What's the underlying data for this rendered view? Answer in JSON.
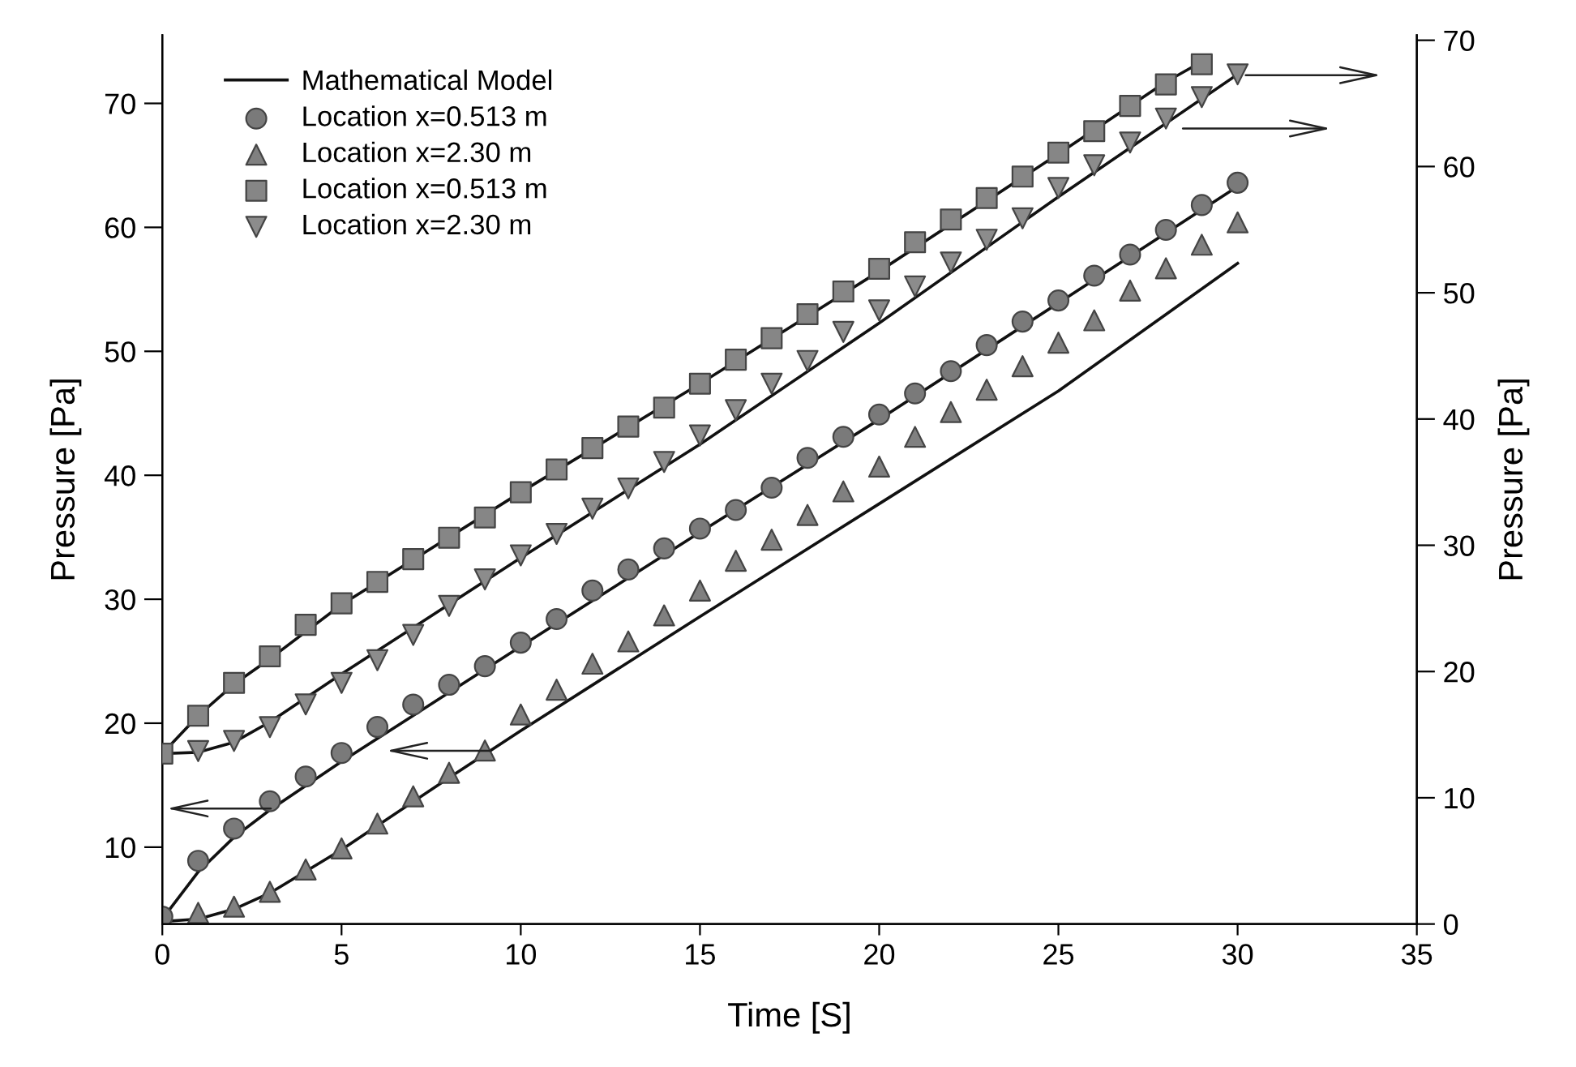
{
  "chart_data": {
    "type": "scatter",
    "xlabel": "Time [S]",
    "ylabel": "Pressure [Pa]",
    "y2label": "Pressure [Pa]",
    "xlim": [
      0,
      35
    ],
    "xticks": [
      0,
      5,
      10,
      15,
      20,
      25,
      30,
      35
    ],
    "ylim": [
      3.8,
      75.5
    ],
    "yticks": [
      10,
      20,
      30,
      40,
      50,
      60,
      70
    ],
    "y2lim": [
      0,
      70.4
    ],
    "y2ticks": [
      0,
      10,
      20,
      30,
      40,
      50,
      60,
      70
    ],
    "grid": false,
    "legend": "top left",
    "x": [
      0,
      1,
      2,
      3,
      4,
      5,
      6,
      7,
      8,
      9,
      10,
      11,
      12,
      13,
      14,
      15,
      16,
      17,
      18,
      19,
      20,
      21,
      22,
      23,
      24,
      25,
      26,
      27,
      28,
      29,
      30
    ],
    "series": [
      {
        "type": "line",
        "name": "Mathematical Model",
        "color": "#111111",
        "marker": "none",
        "line_style": "solid",
        "x": [
          0,
          1,
          2,
          3,
          5,
          10,
          15,
          20,
          25,
          30
        ],
        "values": [
          4.2,
          8.0,
          10.8,
          13.0,
          16.9,
          26.2,
          35.4,
          44.5,
          53.9,
          63.3
        ]
      },
      {
        "type": "line",
        "color": "#111111",
        "marker": "none",
        "line_style": "solid",
        "x": [
          0,
          1,
          2,
          3,
          5,
          8,
          10,
          15,
          20,
          25,
          30
        ],
        "values": [
          4.0,
          4.2,
          5.0,
          6.3,
          9.8,
          15.6,
          19.4,
          28.6,
          37.7,
          46.8,
          57.1
        ]
      },
      {
        "type": "line",
        "color": "#111111",
        "marker": "none",
        "line_style": "solid",
        "axis": "y2",
        "x": [
          0,
          1,
          2,
          3,
          5,
          10,
          15,
          20,
          25,
          28,
          29
        ],
        "values": [
          13.5,
          16.5,
          19.0,
          21.0,
          25.3,
          34.2,
          42.8,
          51.7,
          61.0,
          66.7,
          68.3
        ]
      },
      {
        "type": "line",
        "color": "#111111",
        "marker": "none",
        "line_style": "solid",
        "axis": "y2",
        "x": [
          0,
          1,
          2,
          3,
          5,
          10,
          15,
          20,
          25,
          30
        ],
        "values": [
          13.5,
          13.6,
          14.4,
          16.0,
          19.8,
          29.0,
          38.0,
          47.6,
          57.6,
          67.3
        ]
      },
      {
        "name": "Location x=0.513 m",
        "color": "#7a7a7a",
        "marker": "circle",
        "values": [
          4.4,
          8.9,
          11.5,
          13.7,
          15.7,
          17.6,
          19.7,
          21.5,
          23.1,
          24.6,
          26.5,
          28.4,
          30.7,
          32.4,
          34.1,
          35.7,
          37.2,
          39.0,
          41.4,
          43.1,
          44.9,
          46.6,
          48.4,
          50.5,
          52.4,
          54.1,
          56.1,
          57.8,
          59.8,
          61.8,
          63.6
        ]
      },
      {
        "name": "Location x=2.30 m",
        "color": "#808080",
        "marker": "triangle",
        "values": [
          null,
          4.7,
          5.2,
          6.4,
          8.2,
          9.9,
          11.9,
          14.1,
          16.0,
          17.8,
          20.7,
          22.7,
          24.8,
          26.6,
          28.7,
          30.7,
          33.1,
          34.8,
          36.8,
          38.7,
          40.7,
          43.1,
          45.1,
          46.9,
          48.8,
          50.7,
          52.5,
          54.9,
          56.7,
          58.6,
          60.4
        ]
      },
      {
        "name": "Location x=0.513 m",
        "color": "#868686",
        "marker": "square",
        "axis": "y2",
        "values": [
          13.5,
          16.5,
          19.1,
          21.2,
          23.7,
          25.4,
          27.1,
          28.9,
          30.6,
          32.2,
          34.2,
          36.0,
          37.7,
          39.4,
          40.9,
          42.8,
          44.7,
          46.4,
          48.3,
          50.1,
          51.9,
          54.0,
          55.8,
          57.5,
          59.2,
          61.1,
          62.8,
          64.8,
          66.5,
          68.1,
          null
        ]
      },
      {
        "name": "Location x=2.30 m",
        "color": "#8c8c8c",
        "marker": "triangle_down",
        "axis": "y2",
        "values": [
          null,
          13.7,
          14.5,
          15.6,
          17.4,
          19.1,
          20.9,
          22.9,
          25.2,
          27.3,
          29.2,
          30.9,
          32.9,
          34.5,
          36.6,
          38.7,
          40.7,
          42.8,
          44.6,
          46.9,
          48.6,
          50.5,
          52.4,
          54.2,
          55.9,
          58.3,
          60.1,
          61.9,
          63.8,
          65.5,
          67.3
        ]
      }
    ]
  }
}
